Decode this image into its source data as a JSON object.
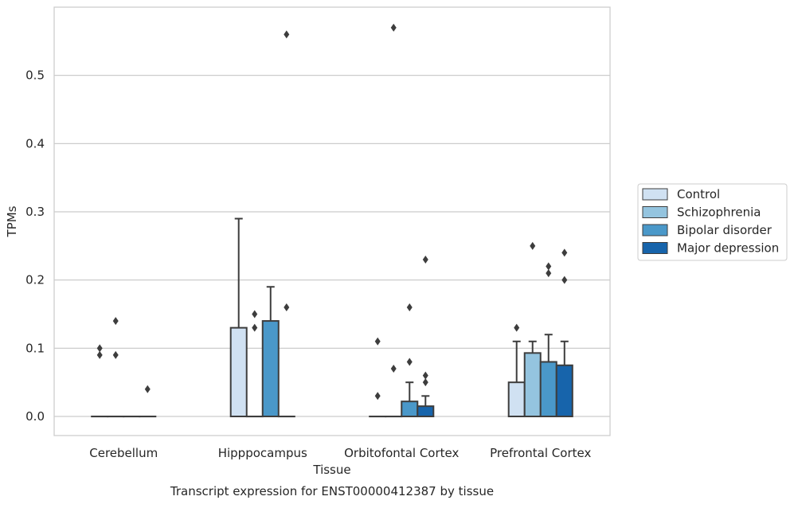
{
  "chart_data": {
    "type": "boxplot",
    "caption": "Transcript expression for ENST00000412387 by tissue",
    "xlabel": "Tissue",
    "ylabel": "TPMs",
    "ylim": [
      -0.028,
      0.6
    ],
    "yticks": [
      "0.0",
      "0.1",
      "0.2",
      "0.3",
      "0.4",
      "0.5"
    ],
    "ytick_values": [
      0.0,
      0.1,
      0.2,
      0.3,
      0.4,
      0.5
    ],
    "grid": "horizontal",
    "legend_position": "right",
    "categories": [
      "Cerebellum",
      "Hipppocampus",
      "Orbitofontal Cortex",
      "Prefrontal Cortex"
    ],
    "series": [
      {
        "name": "Control",
        "color": "#d0e1f2",
        "boxes": [
          {
            "q1": 0.0,
            "median": 0.0,
            "q3": 0.0,
            "whislo": 0.0,
            "whishi": 0.0,
            "fliers": [
              0.1,
              0.09
            ]
          },
          {
            "q1": 0.0,
            "median": 0.0,
            "q3": 0.13,
            "whislo": 0.0,
            "whishi": 0.29,
            "fliers": []
          },
          {
            "q1": 0.0,
            "median": 0.0,
            "q3": 0.0,
            "whislo": 0.0,
            "whishi": 0.0,
            "fliers": [
              0.11,
              0.03
            ]
          },
          {
            "q1": 0.0,
            "median": 0.0,
            "q3": 0.05,
            "whislo": 0.0,
            "whishi": 0.11,
            "fliers": [
              0.13
            ]
          }
        ]
      },
      {
        "name": "Schizophrenia",
        "color": "#94c4df",
        "boxes": [
          {
            "q1": 0.0,
            "median": 0.0,
            "q3": 0.0,
            "whislo": 0.0,
            "whishi": 0.0,
            "fliers": [
              0.14,
              0.09
            ]
          },
          {
            "q1": 0.0,
            "median": 0.0,
            "q3": 0.0,
            "whislo": 0.0,
            "whishi": 0.0,
            "fliers": [
              0.15,
              0.13
            ]
          },
          {
            "q1": 0.0,
            "median": 0.0,
            "q3": 0.0,
            "whislo": 0.0,
            "whishi": 0.0,
            "fliers": [
              0.57,
              0.07
            ]
          },
          {
            "q1": 0.0,
            "median": 0.0,
            "q3": 0.093,
            "whislo": 0.0,
            "whishi": 0.11,
            "fliers": [
              0.25
            ]
          }
        ]
      },
      {
        "name": "Bipolar disorder",
        "color": "#4a98c9",
        "boxes": [
          {
            "q1": 0.0,
            "median": 0.0,
            "q3": 0.0,
            "whislo": 0.0,
            "whishi": 0.0,
            "fliers": []
          },
          {
            "q1": 0.0,
            "median": 0.0,
            "q3": 0.14,
            "whislo": 0.0,
            "whishi": 0.19,
            "fliers": []
          },
          {
            "q1": 0.0,
            "median": 0.0,
            "q3": 0.022,
            "whislo": 0.0,
            "whishi": 0.05,
            "fliers": [
              0.16,
              0.08
            ]
          },
          {
            "q1": 0.0,
            "median": 0.0,
            "q3": 0.08,
            "whislo": 0.0,
            "whishi": 0.12,
            "fliers": [
              0.22,
              0.21
            ]
          }
        ]
      },
      {
        "name": "Major depression",
        "color": "#1764ab",
        "boxes": [
          {
            "q1": 0.0,
            "median": 0.0,
            "q3": 0.0,
            "whislo": 0.0,
            "whishi": 0.0,
            "fliers": [
              0.04
            ]
          },
          {
            "q1": 0.0,
            "median": 0.0,
            "q3": 0.0,
            "whislo": 0.0,
            "whishi": 0.0,
            "fliers": [
              0.56,
              0.16
            ]
          },
          {
            "q1": 0.0,
            "median": 0.0,
            "q3": 0.015,
            "whislo": 0.0,
            "whishi": 0.03,
            "fliers": [
              0.23,
              0.06,
              0.05
            ]
          },
          {
            "q1": 0.0,
            "median": 0.0,
            "q3": 0.075,
            "whislo": 0.0,
            "whishi": 0.11,
            "fliers": [
              0.24,
              0.2
            ]
          }
        ]
      }
    ]
  }
}
